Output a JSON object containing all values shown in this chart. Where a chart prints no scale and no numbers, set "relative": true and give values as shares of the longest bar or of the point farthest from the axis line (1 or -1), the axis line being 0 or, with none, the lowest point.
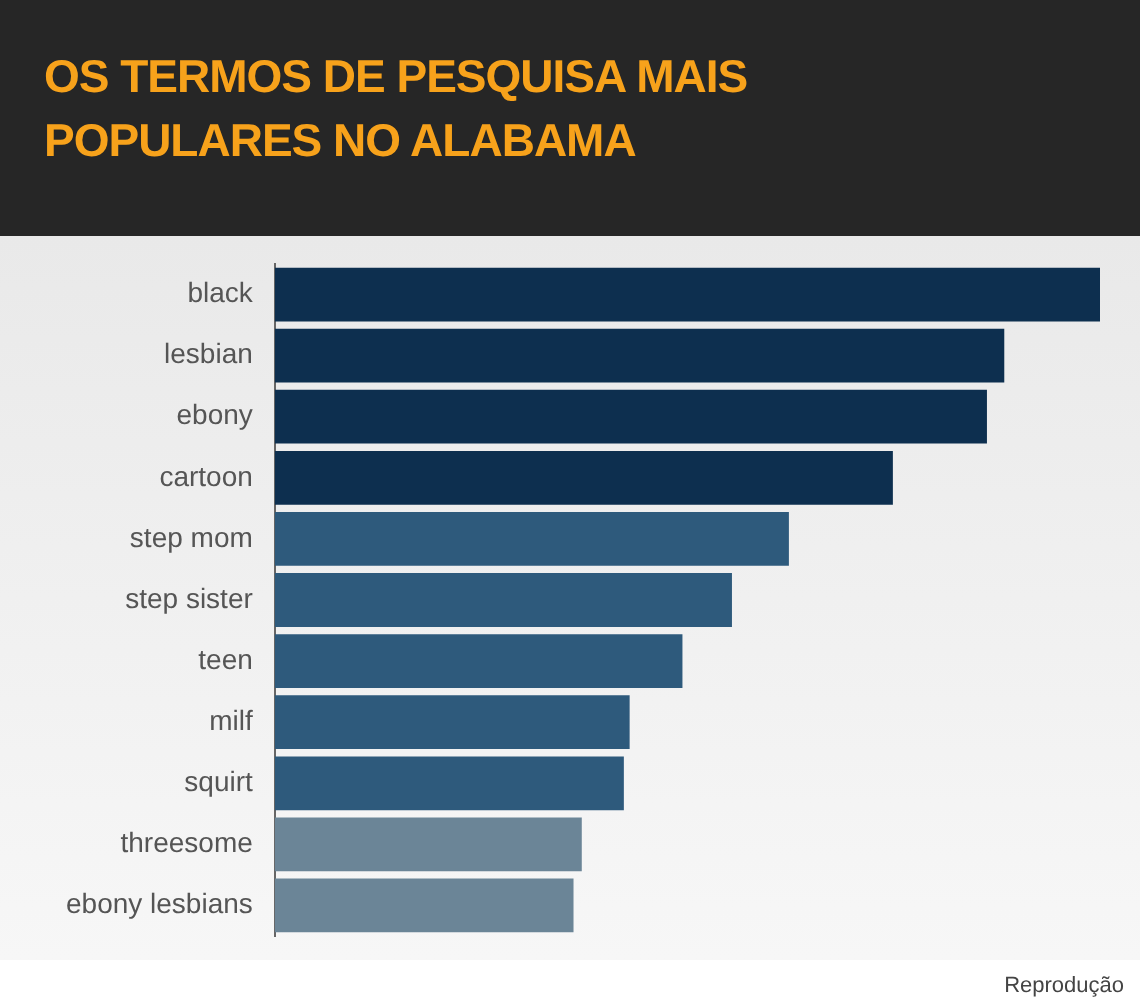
{
  "chart_data": {
    "type": "bar",
    "orientation": "horizontal",
    "relative": true,
    "title": "OS TERMOS DE PESQUISA MAIS POPULARES NO ALABAMA",
    "categories": [
      "black",
      "lesbian",
      "ebony",
      "cartoon",
      "step mom",
      "step sister",
      "teen",
      "milf",
      "squirt",
      "threesome",
      "ebony lesbians"
    ],
    "values": [
      1,
      0.884,
      0.863,
      0.749,
      0.623,
      0.554,
      0.494,
      0.43,
      0.423,
      0.372,
      0.362
    ],
    "colors": [
      "#0d2f4f",
      "#0d2f4f",
      "#0d2f4f",
      "#0d2f4f",
      "#2e5a7c",
      "#2e5a7c",
      "#2e5a7c",
      "#2e5a7c",
      "#2e5a7c",
      "#6b8597",
      "#6b8597"
    ],
    "legend": false,
    "annotations": [
      "Reprodução"
    ]
  }
}
